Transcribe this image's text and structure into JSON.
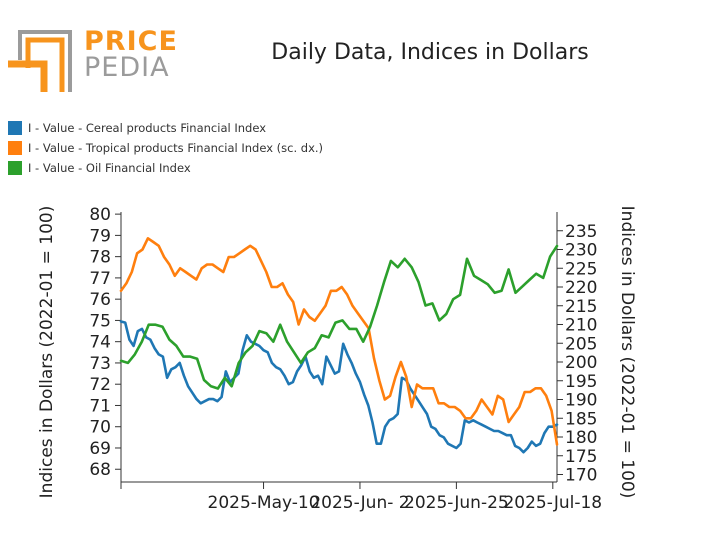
{
  "logo": {
    "line1": "PRICE",
    "line2": "PEDIA"
  },
  "colors": {
    "cereal": "#1f77b4",
    "tropical": "#ff7f0e",
    "oil": "#2ca02c",
    "logo_orange": "#f7941d",
    "logo_gray": "#9b9b9b"
  },
  "chart_data": {
    "type": "line",
    "title": "Daily Data, Indices in Dollars",
    "ylabel": "Indices in Dollars (2022-01 = 100)",
    "ylabel_right": "Indices in Dollars (2022-01 = 100)",
    "x_tick_labels": [
      "2025-May-10",
      "2025-Jun- 2",
      "2025-Jun-25",
      "2025-Jul-18"
    ],
    "x_tick_days": [
      0,
      23,
      46,
      69
    ],
    "y_left_ticks": [
      68,
      69,
      70,
      71,
      72,
      73,
      74,
      75,
      76,
      77,
      78,
      79,
      80
    ],
    "y_left_range": [
      67.4,
      80.1
    ],
    "y_right_ticks": [
      170,
      175,
      180,
      185,
      190,
      195,
      200,
      205,
      210,
      215,
      220,
      225,
      230,
      235
    ],
    "y_right_range": [
      168,
      240
    ],
    "series": [
      {
        "name": "I - Value - Cereal products Financial Index",
        "axis": "left",
        "x": [
          -34,
          -33,
          -32,
          -31,
          -30,
          -29,
          -28,
          -27,
          -26,
          -25,
          -24,
          -23,
          -22,
          -21,
          -20,
          -19,
          -18,
          -17,
          -16,
          -15,
          -14,
          -13,
          -12,
          -11,
          -10,
          -9,
          -8,
          -7,
          -6,
          -5,
          -4,
          -3,
          -2,
          -1,
          0,
          1,
          2,
          3,
          4,
          5,
          6,
          7,
          8,
          9,
          10,
          11,
          12,
          13,
          14,
          15,
          16,
          17,
          18,
          19,
          20,
          21,
          22,
          23,
          24,
          25,
          26,
          27,
          28,
          29,
          30,
          31,
          32,
          33,
          34,
          35,
          36,
          37,
          38,
          39,
          40,
          41,
          42,
          43,
          44,
          45,
          46,
          47,
          48,
          49,
          50,
          51,
          52,
          53,
          54,
          55,
          56,
          57,
          58,
          59,
          60,
          61,
          62,
          63,
          64,
          65,
          66,
          67,
          68,
          69,
          70
        ],
        "values": [
          74.95,
          74.9,
          74.1,
          73.8,
          74.5,
          74.6,
          74.2,
          74.1,
          73.7,
          73.4,
          73.3,
          72.3,
          72.7,
          72.8,
          73.0,
          72.4,
          71.9,
          71.6,
          71.3,
          71.1,
          71.2,
          71.3,
          71.3,
          71.2,
          71.4,
          72.6,
          72.1,
          72.3,
          72.5,
          73.6,
          74.3,
          74.0,
          73.9,
          73.8,
          73.6,
          73.5,
          73.0,
          72.8,
          72.7,
          72.4,
          72.0,
          72.1,
          72.6,
          72.9,
          73.3,
          72.6,
          72.3,
          72.4,
          72.0,
          73.3,
          72.9,
          72.5,
          72.6,
          73.9,
          73.4,
          73.0,
          72.5,
          72.1,
          71.5,
          71.0,
          70.2,
          69.2,
          69.2,
          70.0,
          70.3,
          70.4,
          70.6,
          72.3,
          72.2,
          71.8,
          71.5,
          71.2,
          70.9,
          70.6,
          70.0,
          69.9,
          69.6,
          69.5,
          69.2,
          69.1,
          69.0,
          69.2,
          70.3,
          70.2,
          70.3,
          70.2,
          70.1,
          70.0,
          69.9,
          69.8,
          69.8,
          69.7,
          69.6,
          69.6,
          69.1,
          69.0,
          68.8,
          69.0,
          69.3,
          69.1,
          69.2,
          69.7,
          70.0,
          70.0,
          70.1
        ],
        "x_mask_note": "",
        "color_key": "cereal"
      },
      {
        "name": "I - Value - Tropical products Financial Index (sc. dx.)",
        "axis": "right",
        "values": [
          219,
          221,
          224,
          229,
          230,
          233,
          232,
          231,
          228,
          226,
          223,
          225,
          224,
          223,
          222,
          225,
          226,
          226,
          225,
          224,
          228,
          228,
          229,
          230,
          231,
          230,
          227,
          224,
          220,
          220,
          221,
          218,
          216,
          210,
          214,
          212,
          211,
          213,
          215,
          219,
          219,
          220,
          218,
          215,
          213,
          211,
          209,
          201,
          195,
          190,
          191,
          196,
          200,
          196,
          188,
          194,
          193,
          193,
          193,
          189,
          189,
          188,
          188,
          187,
          185,
          185,
          187,
          190,
          188,
          186,
          191,
          190,
          184,
          186,
          188,
          192,
          192,
          193,
          193,
          191,
          187,
          178
        ],
        "color_key": "tropical"
      },
      {
        "name": "I - Value - Oil Financial Index",
        "axis": "left",
        "values": [
          73.1,
          73.0,
          73.4,
          74.0,
          74.8,
          74.8,
          74.7,
          74.1,
          73.8,
          73.3,
          73.3,
          73.2,
          72.2,
          71.9,
          71.8,
          72.3,
          71.9,
          73.0,
          73.5,
          73.8,
          74.5,
          74.4,
          74.0,
          74.8,
          74.0,
          73.5,
          73.0,
          73.5,
          73.7,
          74.3,
          74.2,
          74.9,
          75.0,
          74.6,
          74.6,
          74.0,
          74.7,
          75.7,
          76.8,
          77.8,
          77.5,
          77.9,
          77.5,
          76.8,
          75.7,
          75.8,
          75.0,
          75.3,
          76.0,
          76.2,
          77.9,
          77.1,
          76.9,
          76.7,
          76.3,
          76.4,
          77.4,
          76.3,
          76.6,
          76.9,
          77.2,
          77.0,
          78.0,
          78.5
        ],
        "color_key": "oil"
      }
    ],
    "x_days_tropical_oil_note": ""
  }
}
